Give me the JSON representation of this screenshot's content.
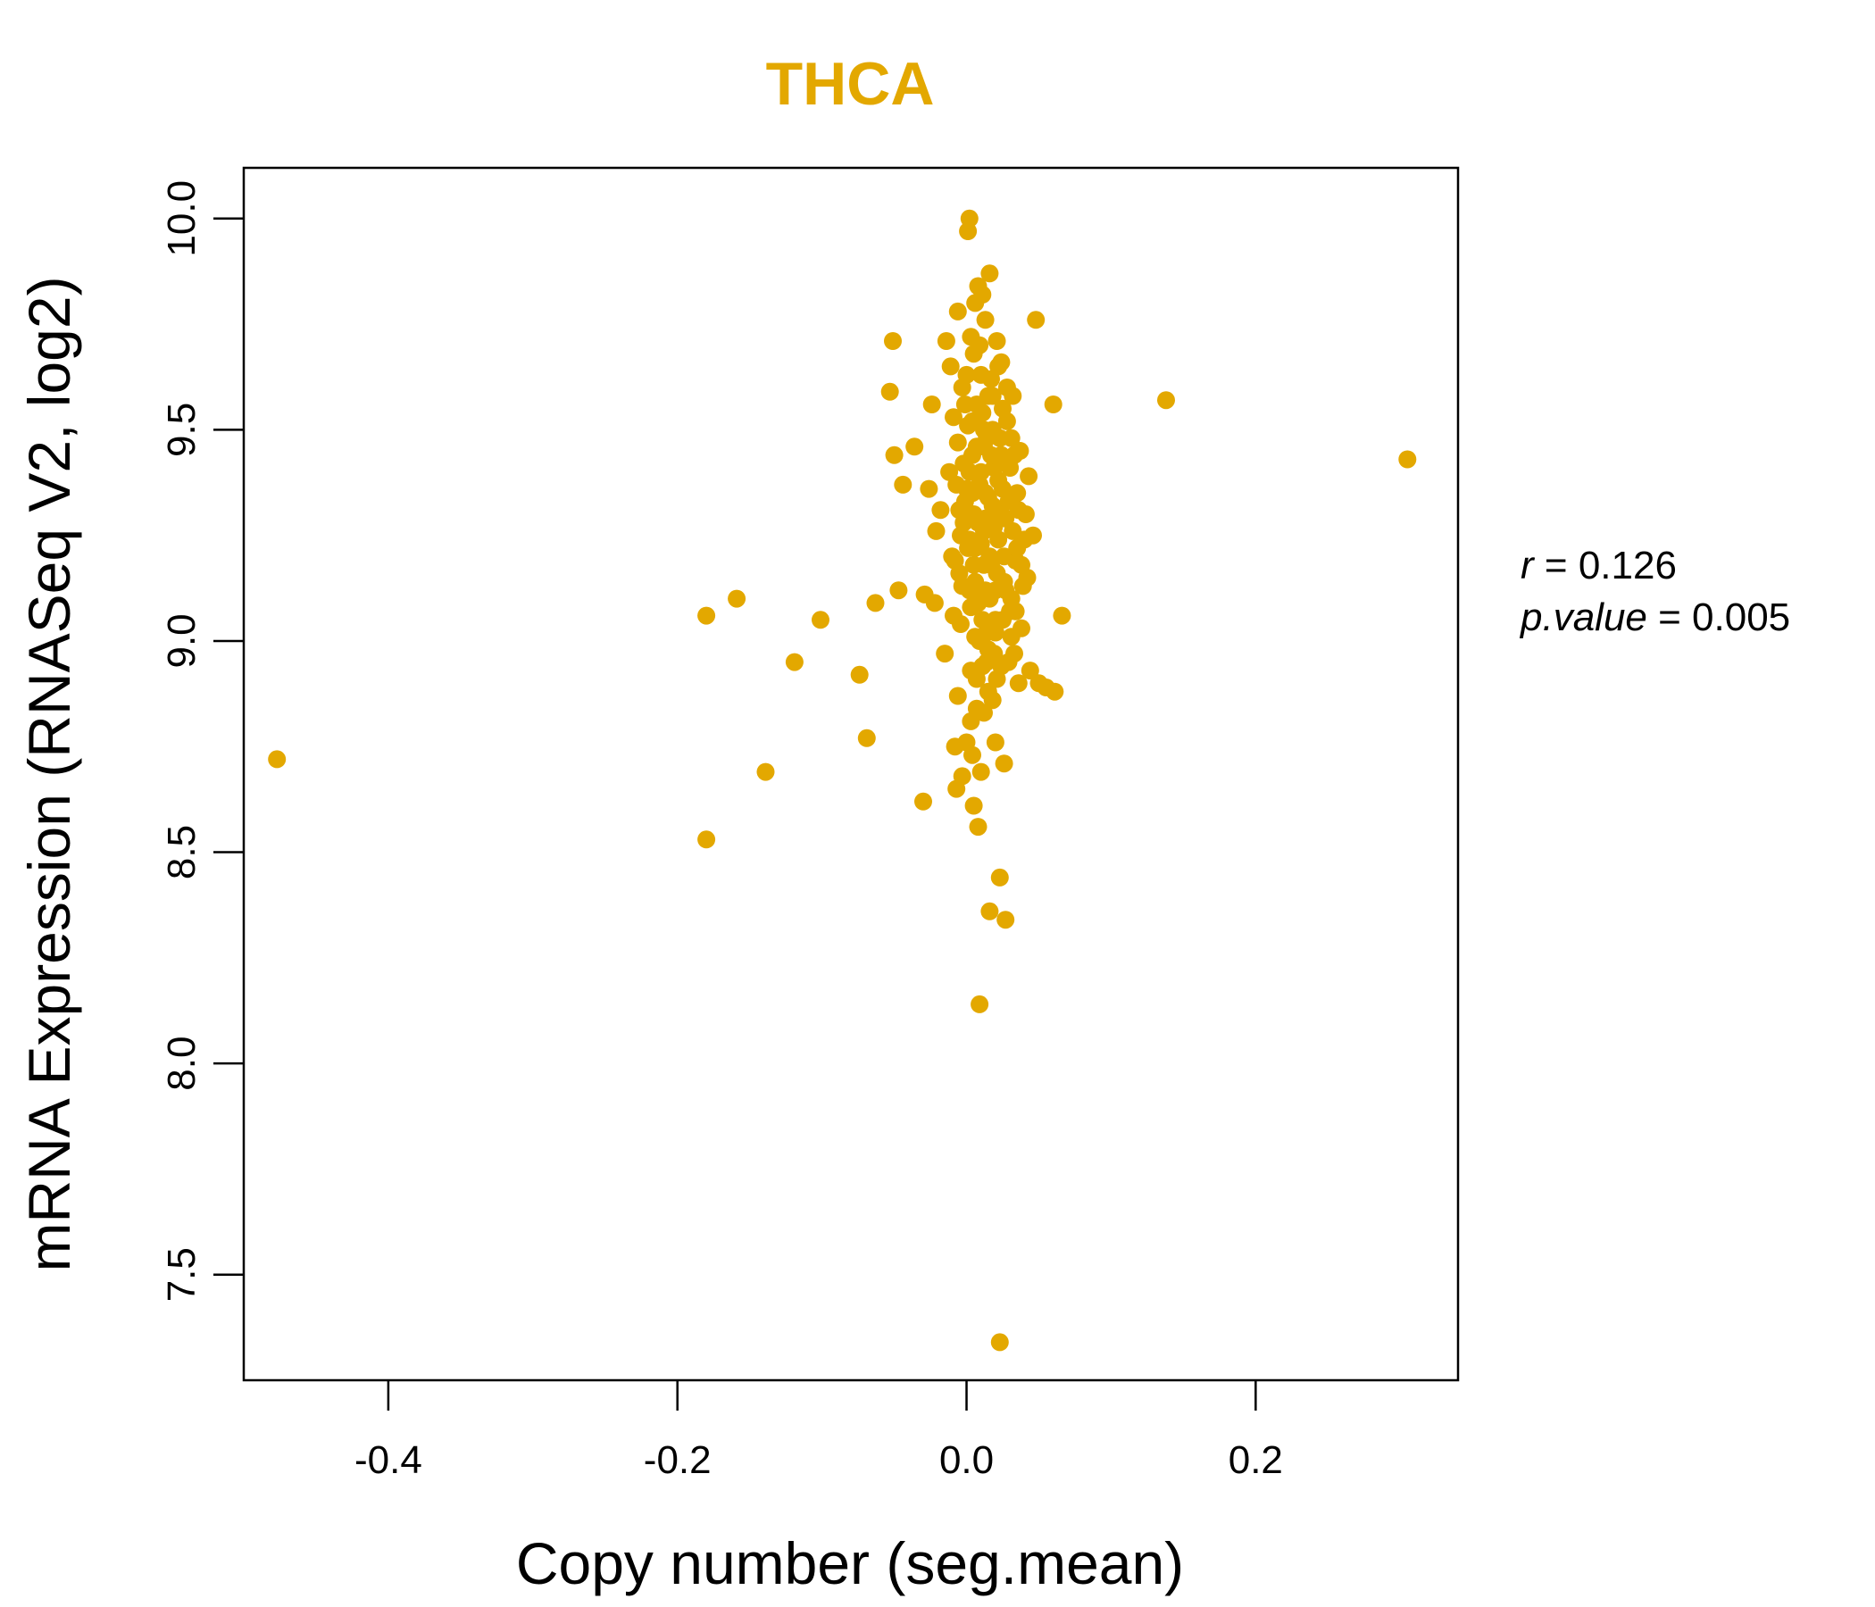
{
  "chart_data": {
    "type": "scatter",
    "title": "THCA",
    "xlabel": "Copy number (seg.mean)",
    "ylabel": "mRNA Expression (RNASeq V2, log2)",
    "xlim": [
      -0.5,
      0.34
    ],
    "ylim": [
      7.25,
      10.12
    ],
    "x_ticks": [
      -0.4,
      -0.2,
      0.0,
      0.2
    ],
    "x_tick_labels": [
      "-0.4",
      "-0.2",
      "0.0",
      "0.2"
    ],
    "y_ticks": [
      7.5,
      8.0,
      8.5,
      9.0,
      9.5,
      10.0
    ],
    "y_tick_labels": [
      "7.5",
      "8.0",
      "8.5",
      "9.0",
      "9.5",
      "10.0"
    ],
    "color": "#E3A800",
    "stats": {
      "r_label": "r",
      "r_value": "0.126",
      "p_label": "p.value",
      "p_value": "0.005"
    },
    "points": [
      {
        "x": -0.477,
        "y": 8.72
      },
      {
        "x": -0.18,
        "y": 9.06
      },
      {
        "x": -0.18,
        "y": 8.53
      },
      {
        "x": -0.159,
        "y": 9.1
      },
      {
        "x": -0.139,
        "y": 8.69
      },
      {
        "x": -0.119,
        "y": 8.95
      },
      {
        "x": -0.101,
        "y": 9.05
      },
      {
        "x": -0.074,
        "y": 8.92
      },
      {
        "x": -0.069,
        "y": 8.77
      },
      {
        "x": -0.063,
        "y": 9.09
      },
      {
        "x": -0.053,
        "y": 9.59
      },
      {
        "x": -0.051,
        "y": 9.71
      },
      {
        "x": -0.05,
        "y": 9.44
      },
      {
        "x": -0.047,
        "y": 9.12
      },
      {
        "x": -0.044,
        "y": 9.37
      },
      {
        "x": -0.036,
        "y": 9.46
      },
      {
        "x": -0.03,
        "y": 8.62
      },
      {
        "x": -0.029,
        "y": 9.11
      },
      {
        "x": -0.026,
        "y": 9.36
      },
      {
        "x": -0.024,
        "y": 9.56
      },
      {
        "x": -0.022,
        "y": 9.09
      },
      {
        "x": -0.021,
        "y": 9.26
      },
      {
        "x": -0.018,
        "y": 9.31
      },
      {
        "x": -0.015,
        "y": 8.97
      },
      {
        "x": -0.014,
        "y": 9.71
      },
      {
        "x": -0.012,
        "y": 9.4
      },
      {
        "x": -0.011,
        "y": 9.65
      },
      {
        "x": -0.01,
        "y": 9.2
      },
      {
        "x": -0.009,
        "y": 9.53
      },
      {
        "x": -0.008,
        "y": 8.75
      },
      {
        "x": -0.007,
        "y": 8.65
      },
      {
        "x": -0.006,
        "y": 9.78
      },
      {
        "x": -0.006,
        "y": 8.87
      },
      {
        "x": -0.005,
        "y": 9.16
      },
      {
        "x": -0.004,
        "y": 9.04
      },
      {
        "x": -0.003,
        "y": 9.6
      },
      {
        "x": -0.003,
        "y": 8.68
      },
      {
        "x": -0.002,
        "y": 9.28
      },
      {
        "x": -0.001,
        "y": 9.33
      },
      {
        "x": 0.0,
        "y": 8.76
      },
      {
        "x": 0.001,
        "y": 9.97
      },
      {
        "x": 0.001,
        "y": 9.51
      },
      {
        "x": 0.002,
        "y": 10.0
      },
      {
        "x": 0.002,
        "y": 9.12
      },
      {
        "x": 0.003,
        "y": 9.72
      },
      {
        "x": 0.003,
        "y": 8.81
      },
      {
        "x": 0.004,
        "y": 9.44
      },
      {
        "x": 0.004,
        "y": 8.73
      },
      {
        "x": 0.005,
        "y": 9.68
      },
      {
        "x": 0.005,
        "y": 8.61
      },
      {
        "x": 0.006,
        "y": 9.8
      },
      {
        "x": 0.006,
        "y": 9.22
      },
      {
        "x": 0.007,
        "y": 8.84
      },
      {
        "x": 0.007,
        "y": 9.56
      },
      {
        "x": 0.008,
        "y": 9.84
      },
      {
        "x": 0.008,
        "y": 8.56
      },
      {
        "x": 0.009,
        "y": 9.37
      },
      {
        "x": 0.009,
        "y": 8.14
      },
      {
        "x": 0.01,
        "y": 9.63
      },
      {
        "x": 0.01,
        "y": 8.69
      },
      {
        "x": 0.011,
        "y": 9.05
      },
      {
        "x": 0.011,
        "y": 9.82
      },
      {
        "x": 0.012,
        "y": 9.46
      },
      {
        "x": 0.012,
        "y": 8.83
      },
      {
        "x": 0.013,
        "y": 9.76
      },
      {
        "x": 0.013,
        "y": 9.29
      },
      {
        "x": 0.014,
        "y": 8.95
      },
      {
        "x": 0.015,
        "y": 9.58
      },
      {
        "x": 0.015,
        "y": 8.88
      },
      {
        "x": 0.016,
        "y": 9.87
      },
      {
        "x": 0.016,
        "y": 8.36
      },
      {
        "x": 0.017,
        "y": 9.18
      },
      {
        "x": 0.018,
        "y": 9.5
      },
      {
        "x": 0.018,
        "y": 8.86
      },
      {
        "x": 0.019,
        "y": 9.41
      },
      {
        "x": 0.02,
        "y": 8.76
      },
      {
        "x": 0.02,
        "y": 9.02
      },
      {
        "x": 0.021,
        "y": 9.71
      },
      {
        "x": 0.022,
        "y": 9.65
      },
      {
        "x": 0.022,
        "y": 9.24
      },
      {
        "x": 0.023,
        "y": 8.44
      },
      {
        "x": 0.023,
        "y": 7.34
      },
      {
        "x": 0.024,
        "y": 8.94
      },
      {
        "x": 0.025,
        "y": 9.55
      },
      {
        "x": 0.026,
        "y": 8.71
      },
      {
        "x": 0.027,
        "y": 8.34
      },
      {
        "x": 0.027,
        "y": 9.12
      },
      {
        "x": 0.028,
        "y": 9.6
      },
      {
        "x": 0.029,
        "y": 9.33
      },
      {
        "x": 0.03,
        "y": 9.07
      },
      {
        "x": 0.031,
        "y": 9.48
      },
      {
        "x": 0.032,
        "y": 9.58
      },
      {
        "x": 0.033,
        "y": 8.97
      },
      {
        "x": 0.034,
        "y": 9.19
      },
      {
        "x": 0.035,
        "y": 9.35
      },
      {
        "x": 0.036,
        "y": 8.9
      },
      {
        "x": 0.037,
        "y": 9.45
      },
      {
        "x": 0.038,
        "y": 9.03
      },
      {
        "x": 0.04,
        "y": 9.24
      },
      {
        "x": 0.041,
        "y": 9.3
      },
      {
        "x": 0.042,
        "y": 9.15
      },
      {
        "x": 0.043,
        "y": 9.39
      },
      {
        "x": 0.044,
        "y": 8.93
      },
      {
        "x": 0.046,
        "y": 9.25
      },
      {
        "x": 0.048,
        "y": 9.76
      },
      {
        "x": 0.05,
        "y": 8.9
      },
      {
        "x": 0.055,
        "y": 8.89
      },
      {
        "x": 0.06,
        "y": 9.56
      },
      {
        "x": 0.061,
        "y": 8.88
      },
      {
        "x": 0.066,
        "y": 9.06
      },
      {
        "x": 0.138,
        "y": 9.57
      },
      {
        "x": 0.305,
        "y": 9.43
      },
      {
        "x": -0.002,
        "y": 9.42
      },
      {
        "x": 0.004,
        "y": 9.35
      },
      {
        "x": 0.008,
        "y": 9.28
      },
      {
        "x": 0.012,
        "y": 9.18
      },
      {
        "x": 0.016,
        "y": 9.1
      },
      {
        "x": 0.001,
        "y": 9.22
      },
      {
        "x": 0.006,
        "y": 9.14
      },
      {
        "x": 0.01,
        "y": 9.4
      },
      {
        "x": 0.014,
        "y": 9.48
      },
      {
        "x": 0.018,
        "y": 9.32
      },
      {
        "x": 0.022,
        "y": 9.38
      },
      {
        "x": 0.026,
        "y": 9.2
      },
      {
        "x": -0.004,
        "y": 9.25
      },
      {
        "x": 0.003,
        "y": 9.08
      },
      {
        "x": 0.009,
        "y": 9.0
      },
      {
        "x": 0.013,
        "y": 9.12
      },
      {
        "x": 0.019,
        "y": 9.27
      },
      {
        "x": 0.024,
        "y": 9.44
      },
      {
        "x": 0.028,
        "y": 9.52
      },
      {
        "x": 0.032,
        "y": 9.26
      },
      {
        "x": -0.006,
        "y": 9.47
      },
      {
        "x": 0.0,
        "y": 9.36
      },
      {
        "x": 0.005,
        "y": 9.3
      },
      {
        "x": 0.011,
        "y": 9.54
      },
      {
        "x": 0.017,
        "y": 9.62
      },
      {
        "x": 0.021,
        "y": 9.16
      },
      {
        "x": 0.025,
        "y": 9.05
      },
      {
        "x": 0.03,
        "y": 9.41
      },
      {
        "x": -0.008,
        "y": 9.19
      },
      {
        "x": 0.002,
        "y": 9.24
      },
      {
        "x": 0.007,
        "y": 9.46
      },
      {
        "x": 0.015,
        "y": 9.34
      },
      {
        "x": 0.02,
        "y": 9.12
      },
      {
        "x": 0.027,
        "y": 9.29
      },
      {
        "x": 0.035,
        "y": 9.22
      },
      {
        "x": 0.039,
        "y": 9.13
      },
      {
        "x": -0.001,
        "y": 9.56
      },
      {
        "x": 0.01,
        "y": 9.23
      },
      {
        "x": 0.014,
        "y": 9.02
      },
      {
        "x": 0.019,
        "y": 8.97
      },
      {
        "x": 0.023,
        "y": 9.48
      },
      {
        "x": 0.031,
        "y": 9.1
      },
      {
        "x": 0.036,
        "y": 9.31
      },
      {
        "x": -0.005,
        "y": 9.31
      },
      {
        "x": 0.004,
        "y": 9.52
      },
      {
        "x": 0.012,
        "y": 9.26
      },
      {
        "x": 0.017,
        "y": 9.44
      },
      {
        "x": 0.025,
        "y": 9.36
      },
      {
        "x": 0.033,
        "y": 9.44
      },
      {
        "x": 0.008,
        "y": 9.09
      },
      {
        "x": 0.003,
        "y": 8.93
      },
      {
        "x": 0.015,
        "y": 8.98
      },
      {
        "x": 0.021,
        "y": 8.91
      },
      {
        "x": 0.029,
        "y": 8.95
      },
      {
        "x": 0.034,
        "y": 9.07
      },
      {
        "x": -0.003,
        "y": 9.13
      },
      {
        "x": 0.006,
        "y": 9.01
      },
      {
        "x": 0.011,
        "y": 8.94
      },
      {
        "x": 0.018,
        "y": 9.58
      },
      {
        "x": 0.024,
        "y": 9.66
      },
      {
        "x": 0.0,
        "y": 9.63
      },
      {
        "x": 0.009,
        "y": 9.7
      },
      {
        "x": -0.007,
        "y": 9.37
      },
      {
        "x": 0.013,
        "y": 9.35
      },
      {
        "x": 0.016,
        "y": 9.2
      },
      {
        "x": 0.026,
        "y": 9.14
      },
      {
        "x": 0.038,
        "y": 9.18
      },
      {
        "x": 0.002,
        "y": 9.4
      },
      {
        "x": 0.02,
        "y": 9.05
      },
      {
        "x": 0.005,
        "y": 9.18
      },
      {
        "x": 0.012,
        "y": 9.5
      },
      {
        "x": 0.022,
        "y": 9.3
      },
      {
        "x": -0.009,
        "y": 9.06
      },
      {
        "x": 0.031,
        "y": 9.01
      },
      {
        "x": 0.007,
        "y": 8.91
      }
    ]
  }
}
